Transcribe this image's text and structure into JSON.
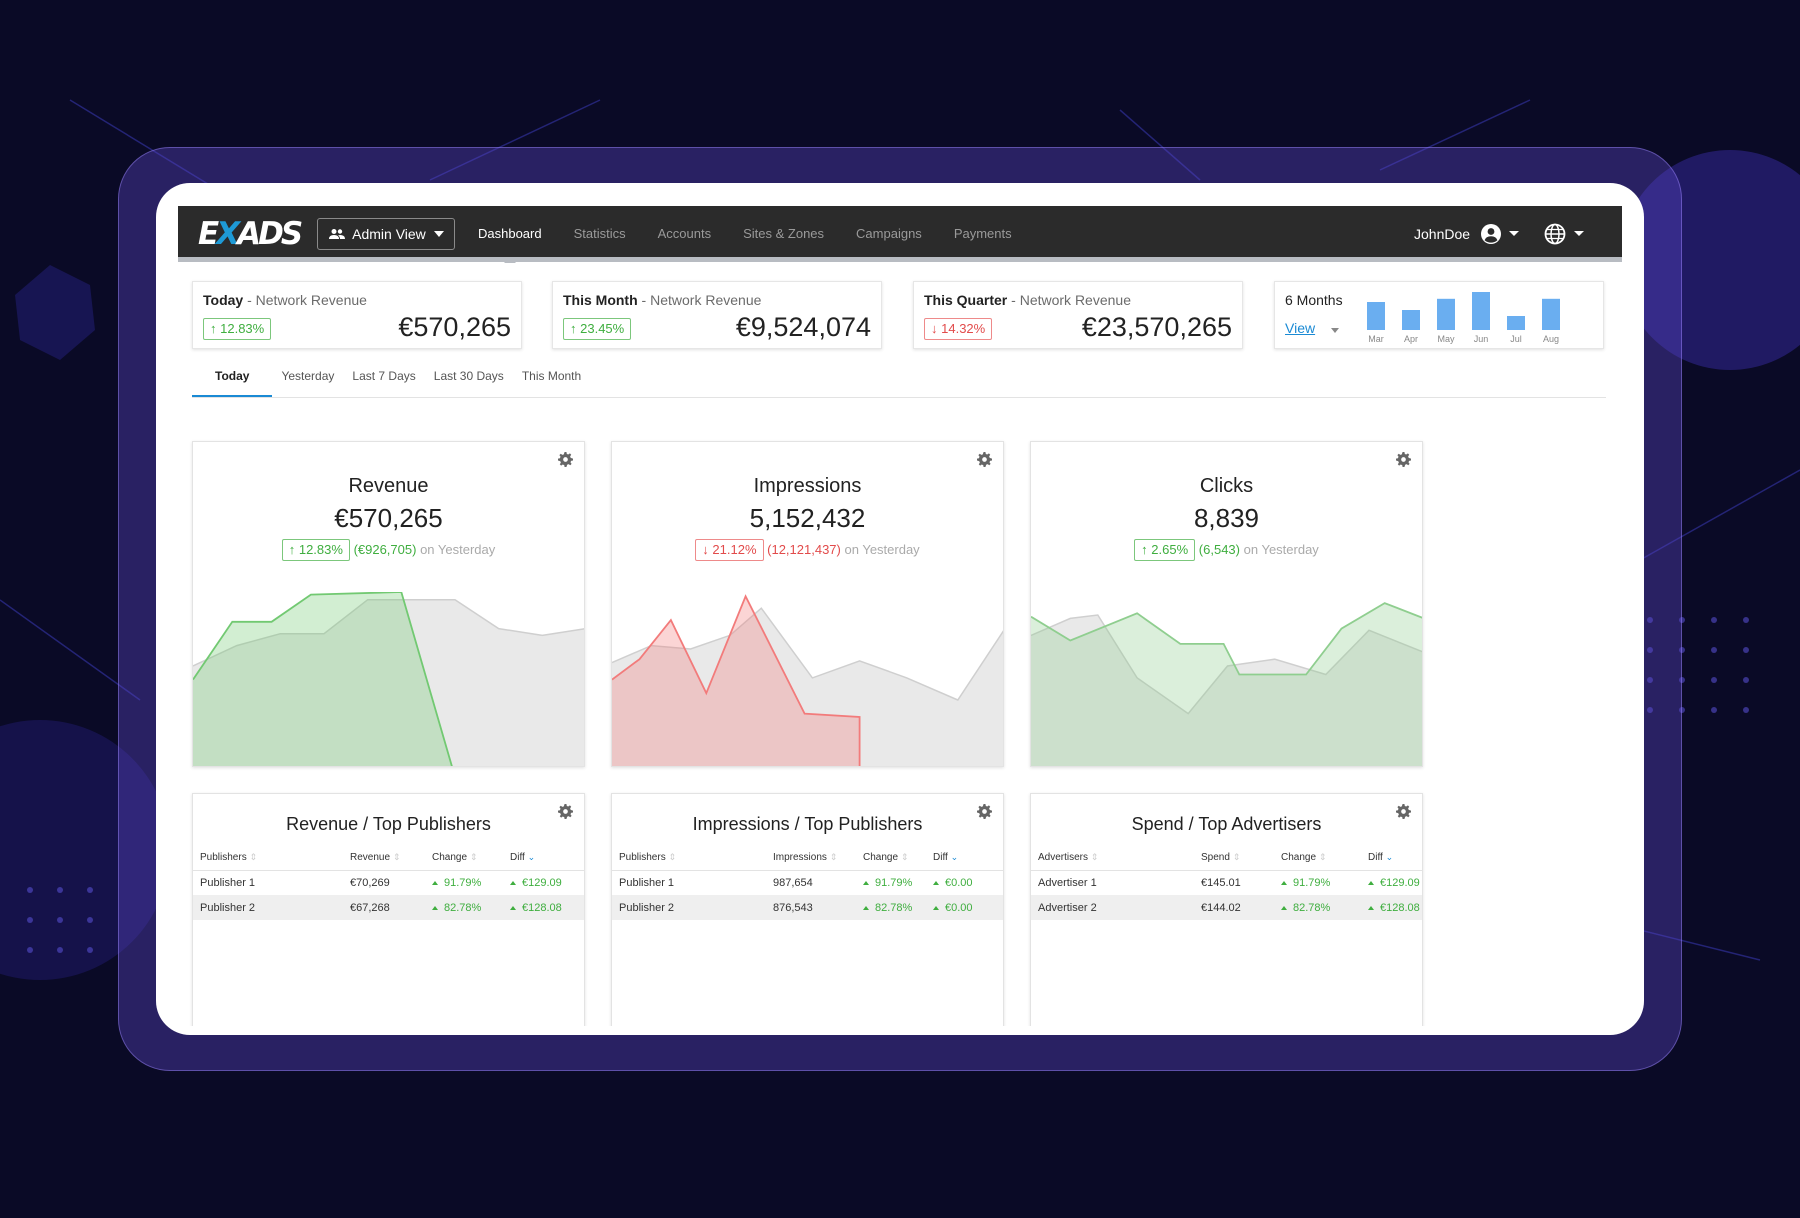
{
  "colors": {
    "accent": "#1a8ad4",
    "positive": "#3fae3f",
    "negative": "#e24b4b",
    "topbar": "#2b2b2b",
    "background": "#0a0a26"
  },
  "topbar": {
    "logo": {
      "prefix": "E",
      "x": "X",
      "suffix": "ADS"
    },
    "admin_view_label": "Admin View",
    "nav": [
      {
        "label": "Dashboard",
        "active": true
      },
      {
        "label": "Statistics"
      },
      {
        "label": "Accounts"
      },
      {
        "label": "Sites & Zones"
      },
      {
        "label": "Campaigns"
      },
      {
        "label": "Payments"
      }
    ],
    "username": "JohnDoe",
    "icons": [
      "users-icon",
      "user-circle-icon",
      "globe-icon",
      "chevron-down-icon"
    ]
  },
  "kpis": [
    {
      "period": "Today",
      "label": "Network Revenue",
      "change": "12.83%",
      "direction": "up",
      "value": "€570,265"
    },
    {
      "period": "This Month",
      "label": "Network Revenue",
      "change": "23.45%",
      "direction": "up",
      "value": "€9,524,074"
    },
    {
      "period": "This Quarter",
      "label": "Network Revenue",
      "change": "14.32%",
      "direction": "down",
      "value": "€23,570,265"
    }
  ],
  "months_widget": {
    "label": "6 Months",
    "view_label": "View",
    "chart_data": {
      "type": "bar",
      "categories": [
        "Mar",
        "Apr",
        "May",
        "Jun",
        "Jul",
        "Aug"
      ],
      "values": [
        70,
        50,
        78,
        95,
        35,
        78
      ],
      "ylim": [
        0,
        100
      ],
      "color": "#6aaef0"
    }
  },
  "tabs": [
    {
      "label": "Today",
      "active": true
    },
    {
      "label": "Yesterday"
    },
    {
      "label": "Last 7 Days"
    },
    {
      "label": "Last 30 Days"
    },
    {
      "label": "This Month"
    }
  ],
  "panels": [
    {
      "title": "Revenue",
      "value": "€570,265",
      "change": "12.83%",
      "direction": "up",
      "diff": "(€926,705)",
      "suffix": "on Yesterday",
      "chart_data": {
        "type": "area",
        "x": [
          0,
          1,
          2,
          3,
          4,
          5,
          6,
          7,
          8,
          9
        ],
        "ylim": [
          0,
          100
        ],
        "series": [
          {
            "values": [
              60,
              72,
              79,
              79,
              99,
              99,
              99,
              82,
              78,
              82
            ],
            "color": "#e2e2e2"
          },
          {
            "values": [
              52,
              86,
              86,
              102,
              107,
              0
            ],
            "color": "#72c972",
            "x": [
              0,
              1,
              2,
              3,
              5.3,
              6.6
            ]
          }
        ]
      }
    },
    {
      "title": "Impressions",
      "value": "5,152,432",
      "change": "21.12%",
      "direction": "down",
      "diff": "(12,121,437)",
      "suffix": "on Yesterday",
      "chart_data": {
        "type": "area",
        "ylim": [
          0,
          100
        ],
        "series": [
          {
            "values": [
              62,
              72,
              70,
              78,
              94,
              53,
              63,
              53,
              40,
              82
            ],
            "color": "#e2e2e2",
            "x": [
              0,
              1,
              2,
              3,
              3.8,
              5.1,
              6.3,
              7.5,
              8.8,
              10
            ]
          },
          {
            "values": [
              52,
              64,
              87,
              44,
              101,
              32,
              30,
              0
            ],
            "color": "#f27b7b",
            "x": [
              0,
              0.7,
              1.5,
              2.4,
              3.4,
              4.9,
              6.3,
              6.3
            ]
          }
        ]
      }
    },
    {
      "title": "Clicks",
      "value": "8,839",
      "change": "2.65%",
      "direction": "up",
      "diff": "(6,543)",
      "suffix": "on Yesterday",
      "chart_data": {
        "type": "area",
        "ylim": [
          0,
          100
        ],
        "series": [
          {
            "values": [
              78,
              88,
              90,
              53,
              32,
              60,
              64,
              55,
              81,
              68
            ],
            "color": "#e2e2e2",
            "x": [
              0,
              1,
              1.7,
              2.7,
              4,
              5,
              6.2,
              7.5,
              8.6,
              10
            ]
          },
          {
            "values": [
              89,
              75,
              91,
              73,
              73,
              55,
              55,
              82,
              97,
              88
            ],
            "color": "#8fce8f",
            "x": [
              0,
              1,
              2.7,
              3.8,
              4.9,
              5.3,
              7,
              7.9,
              9,
              10
            ]
          }
        ]
      }
    }
  ],
  "tables": [
    {
      "title": "Revenue / Top Publishers",
      "columns": [
        "Publishers",
        "Revenue",
        "Change",
        "Diff"
      ],
      "rows": [
        [
          "Publisher 1",
          "€70,269",
          "91.79%",
          "€129.09"
        ],
        [
          "Publisher 2",
          "€67,268",
          "82.78%",
          "€128.08"
        ]
      ]
    },
    {
      "title": "Impressions / Top Publishers",
      "columns": [
        "Publishers",
        "Impressions",
        "Change",
        "Diff"
      ],
      "rows": [
        [
          "Publisher 1",
          "987,654",
          "91.79%",
          "€0.00"
        ],
        [
          "Publisher 2",
          "876,543",
          "82.78%",
          "€0.00"
        ]
      ]
    },
    {
      "title": "Spend / Top Advertisers",
      "columns": [
        "Advertisers",
        "Spend",
        "Change",
        "Diff"
      ],
      "rows": [
        [
          "Advertiser 1",
          "€145.01",
          "91.79%",
          "€129.09"
        ],
        [
          "Advertiser 2",
          "€144.02",
          "82.78%",
          "€128.08"
        ]
      ]
    }
  ]
}
